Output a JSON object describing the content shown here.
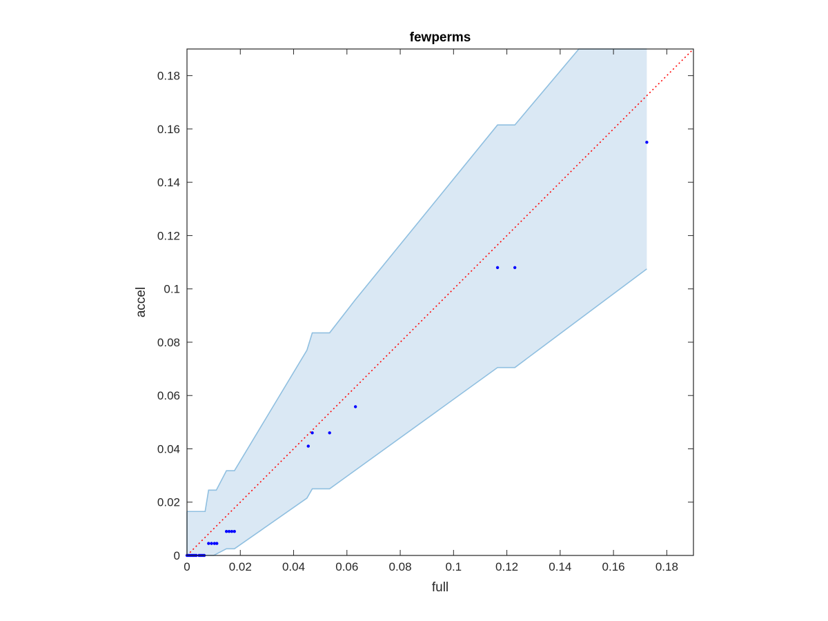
{
  "chart_data": {
    "type": "scatter",
    "title": "fewperms",
    "xlabel": "full",
    "ylabel": "accel",
    "xlim": [
      0,
      0.19
    ],
    "ylim": [
      0,
      0.19
    ],
    "xticks": [
      "0",
      "0.02",
      "0.04",
      "0.06",
      "0.08",
      "0.1",
      "0.12",
      "0.14",
      "0.16",
      "0.18"
    ],
    "yticks": [
      "0",
      "0.02",
      "0.04",
      "0.06",
      "0.08",
      "0.1",
      "0.12",
      "0.14",
      "0.16",
      "0.18"
    ],
    "grid": false,
    "colors": {
      "points": "#0000ff",
      "band_fill": "#dae8f4",
      "band_edge": "#8fbfe0",
      "reference_line": "#ff0000",
      "axes": "#262626"
    },
    "reference_line": {
      "style": "dotted",
      "x": [
        0,
        0.19
      ],
      "y": [
        0,
        0.19
      ]
    },
    "band": {
      "upper": [
        [
          0,
          0.0165
        ],
        [
          0.0068,
          0.0165
        ],
        [
          0.0081,
          0.0245
        ],
        [
          0.011,
          0.0245
        ],
        [
          0.0148,
          0.0318
        ],
        [
          0.0178,
          0.0318
        ],
        [
          0.045,
          0.077
        ],
        [
          0.047,
          0.0835
        ],
        [
          0.0535,
          0.0835
        ],
        [
          0.0632,
          0.096
        ],
        [
          0.1165,
          0.1615
        ],
        [
          0.123,
          0.1615
        ],
        [
          0.147,
          0.19
        ],
        [
          0.1725,
          0.19
        ]
      ],
      "lower": [
        [
          0,
          0
        ],
        [
          0.01,
          0
        ],
        [
          0.0148,
          0.0025
        ],
        [
          0.0178,
          0.0025
        ],
        [
          0.045,
          0.0215
        ],
        [
          0.047,
          0.025
        ],
        [
          0.0535,
          0.025
        ],
        [
          0.0632,
          0.032
        ],
        [
          0.1165,
          0.0705
        ],
        [
          0.123,
          0.0705
        ],
        [
          0.1725,
          0.1075
        ]
      ]
    },
    "points": [
      [
        0,
        0
      ],
      [
        0.0005,
        0
      ],
      [
        0.001,
        0
      ],
      [
        0.0015,
        0
      ],
      [
        0.002,
        0
      ],
      [
        0.0025,
        0
      ],
      [
        0.003,
        0
      ],
      [
        0.0035,
        0
      ],
      [
        0.0045,
        0
      ],
      [
        0.005,
        0
      ],
      [
        0.0055,
        0
      ],
      [
        0.006,
        0
      ],
      [
        0.0065,
        0
      ],
      [
        0.0081,
        0.0045
      ],
      [
        0.0092,
        0.0045
      ],
      [
        0.0103,
        0.0045
      ],
      [
        0.0112,
        0.0045
      ],
      [
        0.0148,
        0.009
      ],
      [
        0.0158,
        0.009
      ],
      [
        0.0168,
        0.009
      ],
      [
        0.0178,
        0.009
      ],
      [
        0.0455,
        0.041
      ],
      [
        0.047,
        0.046
      ],
      [
        0.0535,
        0.046
      ],
      [
        0.0632,
        0.0558
      ],
      [
        0.1165,
        0.108
      ],
      [
        0.123,
        0.108
      ],
      [
        0.1725,
        0.155
      ]
    ]
  }
}
